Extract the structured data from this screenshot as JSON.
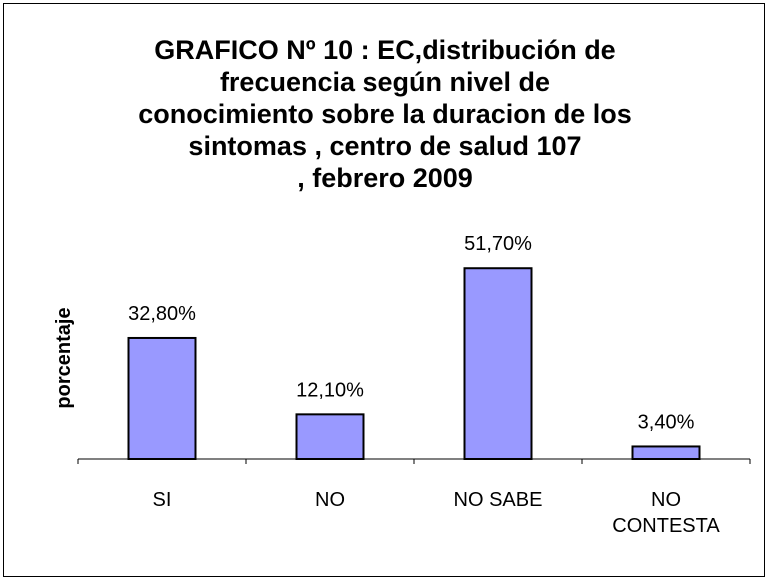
{
  "chart_data": {
    "type": "bar",
    "title": "GRAFICO Nº 10 : EC,distribución de\nfrecuencia según  nivel de\nconocimiento sobre la duracion de los\nsintomas , centro de salud 107\n, febrero 2009",
    "y_label": "porcentaje",
    "categories": [
      "SI",
      "NO",
      "NO SABE",
      "NO CONTESTA"
    ],
    "values": [
      32.8,
      12.1,
      51.7,
      3.4
    ],
    "value_labels": [
      "32,80%",
      "12,10%",
      "51,70%",
      "3,40%"
    ],
    "color": "#9999ff"
  }
}
